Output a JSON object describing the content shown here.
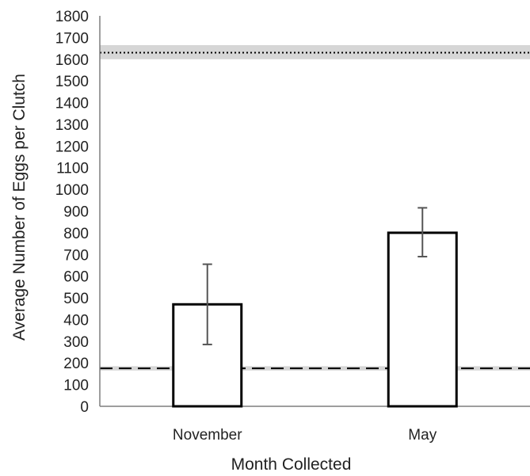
{
  "chart_data": {
    "type": "bar",
    "xlabel": "Month Collected",
    "ylabel": "Average Number of Eggs per Clutch",
    "categories": [
      "November",
      "May"
    ],
    "values": [
      470,
      800
    ],
    "error_low": [
      285,
      690
    ],
    "error_high": [
      655,
      915
    ],
    "ylim": [
      0,
      1800
    ],
    "yticks": [
      "0",
      "100",
      "200",
      "300",
      "400",
      "500",
      "600",
      "700",
      "800",
      "900",
      "1000",
      "1100",
      "1200",
      "1300",
      "1400",
      "1500",
      "1600",
      "1700",
      "1800"
    ],
    "reference_lines": [
      {
        "style": "dotted",
        "value": 1630,
        "band": [
          1600,
          1665
        ]
      },
      {
        "style": "dashed",
        "value": 175,
        "band": [
          165,
          185
        ]
      }
    ],
    "grid": false,
    "colors": {
      "bar_fill": "#ffffff",
      "bar_edge": "#000000",
      "error": "#555555",
      "band": "#d6d6d6"
    }
  }
}
